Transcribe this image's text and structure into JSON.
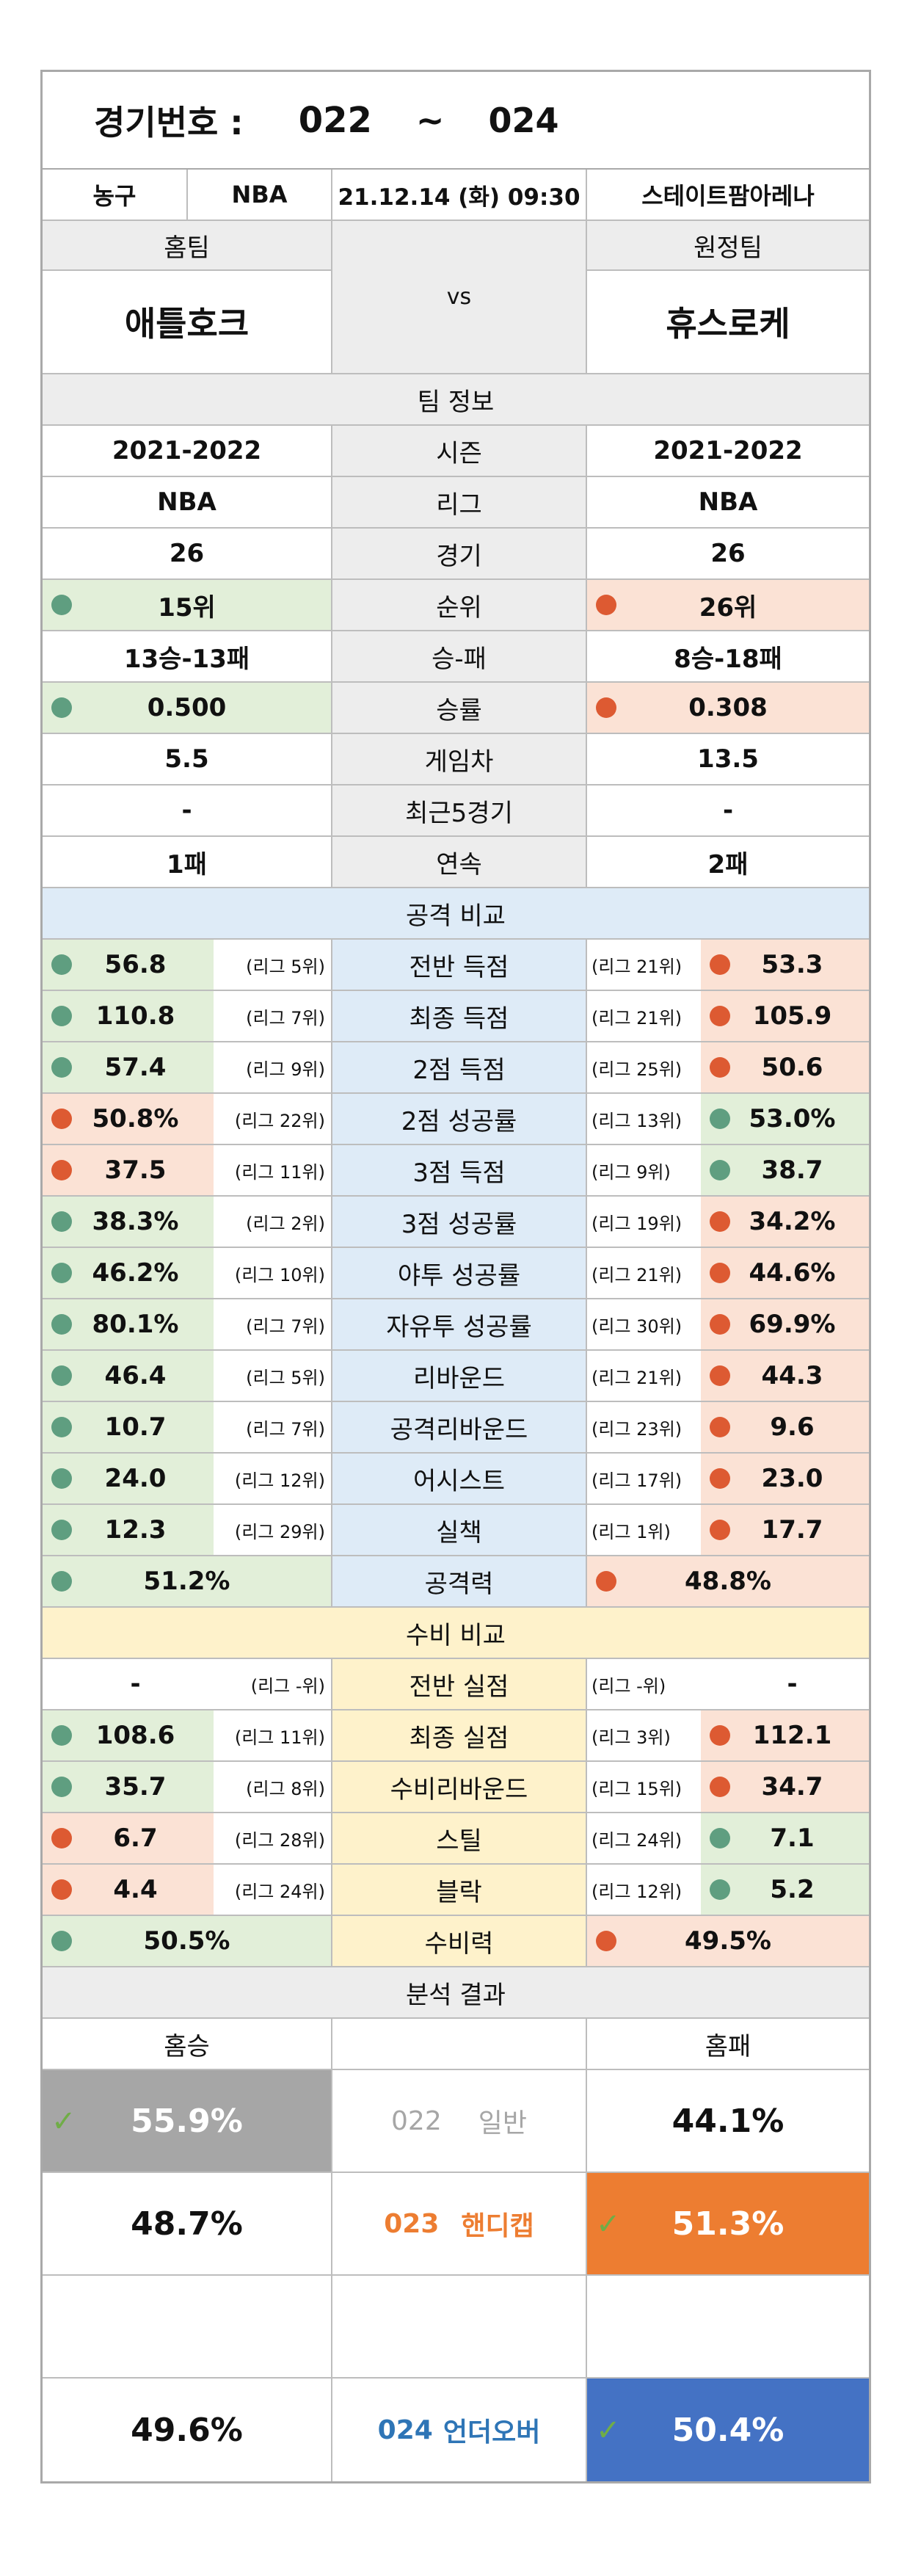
{
  "header": {
    "title": "경기번호 :",
    "from": "022",
    "tilde": "~",
    "to": "024"
  },
  "info": {
    "sport": "농구",
    "league": "NBA",
    "datetime": "21.12.14 (화) 09:30",
    "venue": "스테이트팜아레나"
  },
  "teams": {
    "home_label": "홈팀",
    "away_label": "원정팀",
    "vs": "vs",
    "home": "애틀호크",
    "away": "휴스로케"
  },
  "team_info": {
    "title": "팀 정보",
    "rows": [
      {
        "label": "시즌",
        "home": "2021-2022",
        "away": "2021-2022"
      },
      {
        "label": "리그",
        "home": "NBA",
        "away": "NBA"
      },
      {
        "label": "경기",
        "home": "26",
        "away": "26"
      },
      {
        "label": "순위",
        "home": "15위",
        "away": "26위"
      },
      {
        "label": "승-패",
        "home": "13승-13패",
        "away": "8승-18패"
      },
      {
        "label": "승률",
        "home": "0.500",
        "away": "0.308"
      },
      {
        "label": "게임차",
        "home": "5.5",
        "away": "13.5"
      },
      {
        "label": "최근5경기",
        "home": "-",
        "away": "-"
      },
      {
        "label": "연속",
        "home": "1패",
        "away": "2패"
      }
    ]
  },
  "attack": {
    "title": "공격 비교",
    "rows": [
      {
        "label": "전반 득점",
        "home": "56.8",
        "home_rank": "(리그 5위)",
        "away": "53.3",
        "away_rank": "(리그 21위)"
      },
      {
        "label": "최종 득점",
        "home": "110.8",
        "home_rank": "(리그 7위)",
        "away": "105.9",
        "away_rank": "(리그 21위)"
      },
      {
        "label": "2점 득점",
        "home": "57.4",
        "home_rank": "(리그 9위)",
        "away": "50.6",
        "away_rank": "(리그 25위)"
      },
      {
        "label": "2점 성공률",
        "home": "50.8%",
        "home_rank": "(리그 22위)",
        "away": "53.0%",
        "away_rank": "(리그 13위)"
      },
      {
        "label": "3점 득점",
        "home": "37.5",
        "home_rank": "(리그 11위)",
        "away": "38.7",
        "away_rank": "(리그 9위)"
      },
      {
        "label": "3점 성공률",
        "home": "38.3%",
        "home_rank": "(리그 2위)",
        "away": "34.2%",
        "away_rank": "(리그 19위)"
      },
      {
        "label": "야투 성공률",
        "home": "46.2%",
        "home_rank": "(리그 10위)",
        "away": "44.6%",
        "away_rank": "(리그 21위)"
      },
      {
        "label": "자유투 성공률",
        "home": "80.1%",
        "home_rank": "(리그 7위)",
        "away": "69.9%",
        "away_rank": "(리그 30위)"
      },
      {
        "label": "리바운드",
        "home": "46.4",
        "home_rank": "(리그 5위)",
        "away": "44.3",
        "away_rank": "(리그 21위)"
      },
      {
        "label": "공격리바운드",
        "home": "10.7",
        "home_rank": "(리그 7위)",
        "away": "9.6",
        "away_rank": "(리그 23위)"
      },
      {
        "label": "어시스트",
        "home": "24.0",
        "home_rank": "(리그 12위)",
        "away": "23.0",
        "away_rank": "(리그 17위)"
      },
      {
        "label": "실책",
        "home": "12.3",
        "home_rank": "(리그 29위)",
        "away": "17.7",
        "away_rank": "(리그 1위)"
      }
    ],
    "power": {
      "label": "공격력",
      "home": "51.2%",
      "away": "48.8%"
    }
  },
  "defense": {
    "title": "수비 비교",
    "rows": [
      {
        "label": "전반 실점",
        "home": "-",
        "home_rank": "(리그 -위)",
        "away": "-",
        "away_rank": "(리그 -위)"
      },
      {
        "label": "최종 실점",
        "home": "108.6",
        "home_rank": "(리그 11위)",
        "away": "112.1",
        "away_rank": "(리그 3위)"
      },
      {
        "label": "수비리바운드",
        "home": "35.7",
        "home_rank": "(리그 8위)",
        "away": "34.7",
        "away_rank": "(리그 15위)"
      },
      {
        "label": "스틸",
        "home": "6.7",
        "home_rank": "(리그 28위)",
        "away": "7.1",
        "away_rank": "(리그 24위)"
      },
      {
        "label": "블락",
        "home": "4.4",
        "home_rank": "(리그 24위)",
        "away": "5.2",
        "away_rank": "(리그 12위)"
      }
    ],
    "power": {
      "label": "수비력",
      "home": "50.5%",
      "away": "49.5%"
    }
  },
  "analysis": {
    "title": "분석 결과",
    "home_label": "홈승",
    "away_label": "홈패",
    "r1": {
      "home": "55.9%",
      "code": "022",
      "type": "일반",
      "away": "44.1%"
    },
    "r2": {
      "home": "48.7%",
      "code": "023",
      "type": "핸디캡",
      "away": "51.3%"
    },
    "r3": {
      "home": "49.6%",
      "code": "024",
      "type": "언더오버",
      "away": "50.4%"
    },
    "check": "✓"
  },
  "colors": {
    "green_dot": "#5f9e80",
    "orange_dot": "#dd5a32",
    "gray_pick": "#a6a6a6",
    "orange_pick": "#ed7d31",
    "blue_pick": "#4472c4"
  }
}
